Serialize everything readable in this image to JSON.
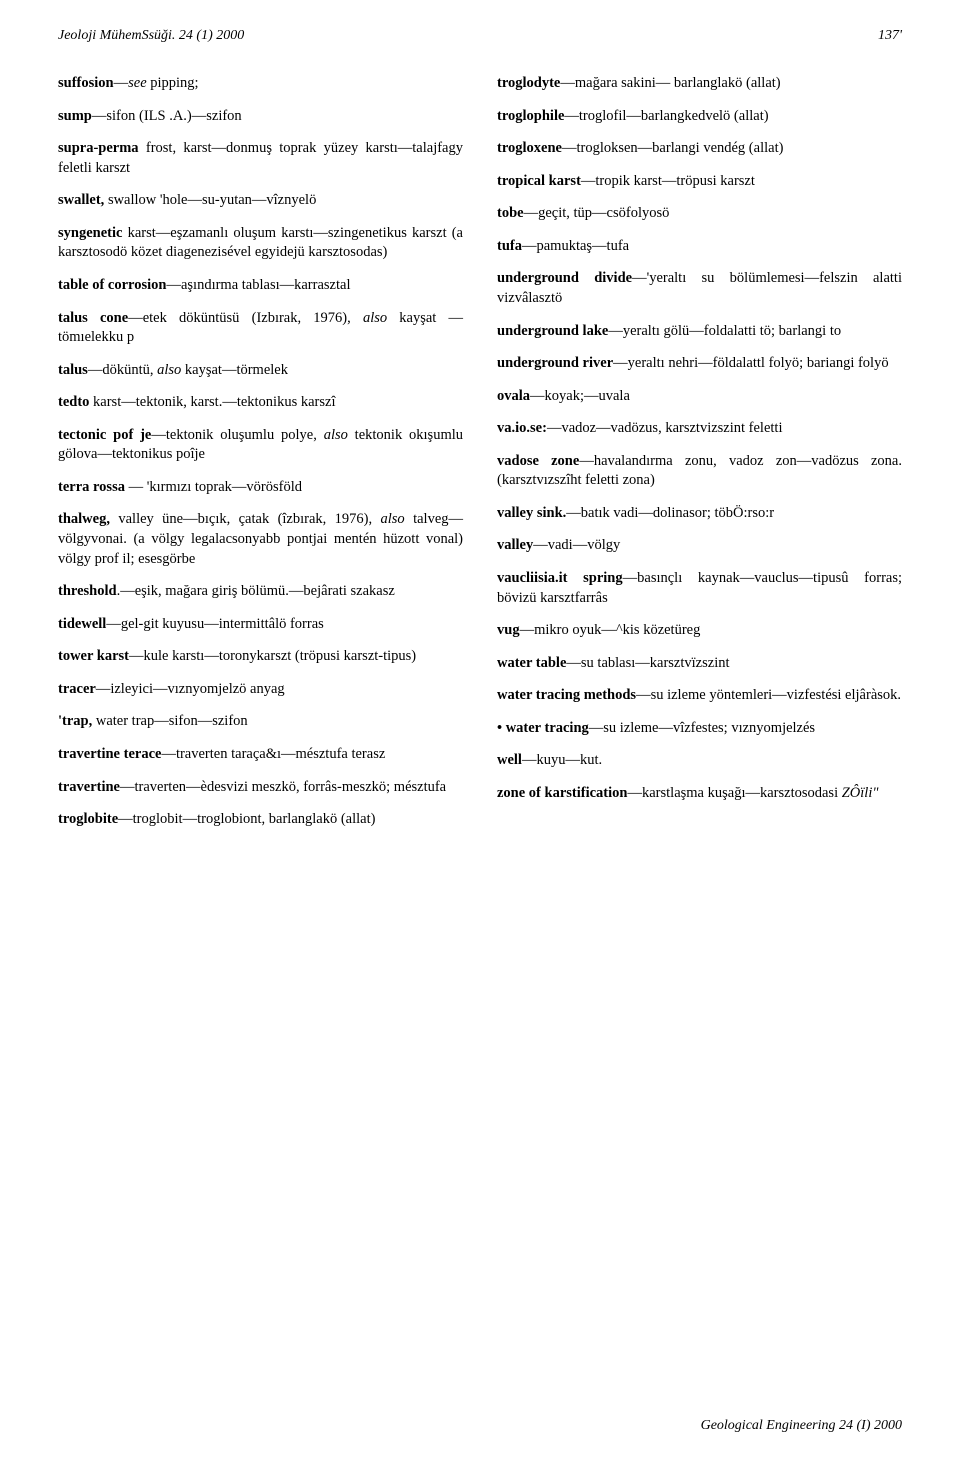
{
  "header": {
    "left": "Jeoloji MühemSsüği. 24 (1) 2000",
    "right": "137'"
  },
  "left_col": [
    {
      "html": "<span class='bold'>suffosion</span>—<span class='ital'>see</span>  pipping;"
    },
    {
      "html": "<span class='bold'>sump</span>—sifon (ILS .A.)—szifon"
    },
    {
      "html": "<span class='bold'>supra-perma</span> frost, karst—donmuş toprak yüzey karstı—talajfagy feletli karszt"
    },
    {
      "html": "<span class='bold'>swallet,</span> swallow 'hole—su-yutan—vîznyelö"
    },
    {
      "html": "<span class='bold'>syngenetic</span> karst—eşzamanlı oluşum karstı—szingenetikus karszt (a karsztosodö közet diagenezisével egyidejü karsztosodas)"
    },
    {
      "html": "<span class='bold'>table of corrosion</span>—aşındırma tablası—karrasztal"
    },
    {
      "html": "<span class='bold'>talus cone</span>—etek döküntüsü (Izbırak, 1976), <span class='ital'>also</span> kayşat —tömıelekku p"
    },
    {
      "html": "<span class='bold'>talus</span>—döküntü, <span class='ital'>also</span> kayşat—törmelek"
    },
    {
      "html": "<span class='bold'>tedto</span> karst—tektonik, karst.—tektonikus karszî"
    },
    {
      "html": "<span class='bold'>tectonic pof je</span>—tektonik oluşumlu polye, <span class='ital'>also</span> tektonik okışumlu gölova—tektonikus poîje"
    },
    {
      "html": "<span class='bold'>terra rossa</span> — 'kırmızı toprak—vörösföld"
    },
    {
      "html": "<span class='bold'>thalweg,</span> valley üne—bıçık, çatak (îzbırak, 1976), <span class='ital'>also</span> talveg—völgyvonai. (a völgy legalacsonyabb pontjai mentén hüzott vonal) völgy prof il; esesgörbe"
    },
    {
      "html": "<span class='bold'>threshold</span>.—eşik, mağara giriş bölümü.—bejârati szakasz"
    },
    {
      "html": "<span class='bold'>tidewell</span>—gel-git kuyusu—intermittâlö forras"
    },
    {
      "html": "<span class='bold'>tower karst</span>—kule karstı—toronykarszt (tröpusi karszt-tipus)"
    },
    {
      "html": "<span class='bold'>tracer</span>—izleyici—vıznyomjelzö  anyag"
    },
    {
      "html": "<span class='bold'>'trap,</span> water trap—sifon—szifon"
    },
    {
      "html": "<span class='bold'>travertine terace</span>—traverten taraça&ı—mésztufa terasz"
    },
    {
      "html": "<span class='bold'>travertine</span>—traverten—èdesvizi meszkö, forrâs-meszkö; mésztufa"
    },
    {
      "html": "<span class='bold'>troglobite</span>—troglobit—troglobiont, barlanglakö (allat)"
    }
  ],
  "right_col": [
    {
      "html": "<span class='bold'>troglodyte</span>—mağara sakini— barlanglakö (allat)"
    },
    {
      "html": "<span class='bold'>troglophile</span>—troglofil—barlangkedvelö  (allat)"
    },
    {
      "html": "<span class='bold'>trogloxene</span>—trogloksen—barlangi vendég (allat)"
    },
    {
      "html": "<span class='bold'>tropical karst</span>—tropik karst—tröpusi karszt"
    },
    {
      "html": "<span class='bold'>tobe</span>—geçit,  tüp—csöfolyosö"
    },
    {
      "html": "<span class='bold'>tufa</span>—pamuktaş—tufa"
    },
    {
      "html": "<span class='bold'>underground divide</span>—'yeraltı su bölümlemesi—felszin alatti vizvâlasztö"
    },
    {
      "html": "<span class='bold'>underground lake</span>—yeraltı gölü—foldalatti tö; barlangi to"
    },
    {
      "html": "<span class='bold'>underground river</span>—yeraltı nehri—földalattl folyö; bariangi folyö"
    },
    {
      "html": "<span class='bold'>ovala</span>—koyak;—uvala"
    },
    {
      "html": "<span class='bold'>va.io.se:</span>—vadoz—vadözus, karsztvizszint feletti"
    },
    {
      "html": "<span class='bold'>vadose zone</span>—havalandırma zonu, vadoz zon—vadözus zona. (karsztvızszîht feletti zona)"
    },
    {
      "html": "<span class='bold'>valley sink.</span>—batık vadi—dolinasor; töbÖ:rso:r"
    },
    {
      "html": "<span class='bold'>valley</span>—vadi—völgy"
    },
    {
      "html": "<span class='bold'>vaucliisia.it spring</span>—basınçlı kaynak—vauclus—tipusû forras; bövizü karsztfarrâs"
    },
    {
      "html": "<span class='bold'>vug</span>—mikro oyuk—^kis közetüreg"
    },
    {
      "html": "<span class='bold'>water table</span>—su tablası—karsztvïzszint"
    },
    {
      "html": "<span class='bold'>water tracing methods</span>—su izleme yöntemleri—vizfestési eljâràsok."
    },
    {
      "html": "<span class='bold'>• water tracing</span>—su izleme—vîzfestes; vıznyomjelzés"
    },
    {
      "html": "<span class='bold'>well</span>—kuyu—kut."
    },
    {
      "html": "<span class='bold'>zone of karstification</span>—karstlaşma kuşağı—karsztosodasi <span class='ital'>ZÔïli\"</span>"
    }
  ],
  "footer": "Geological Engineering 24 (I) 2000"
}
